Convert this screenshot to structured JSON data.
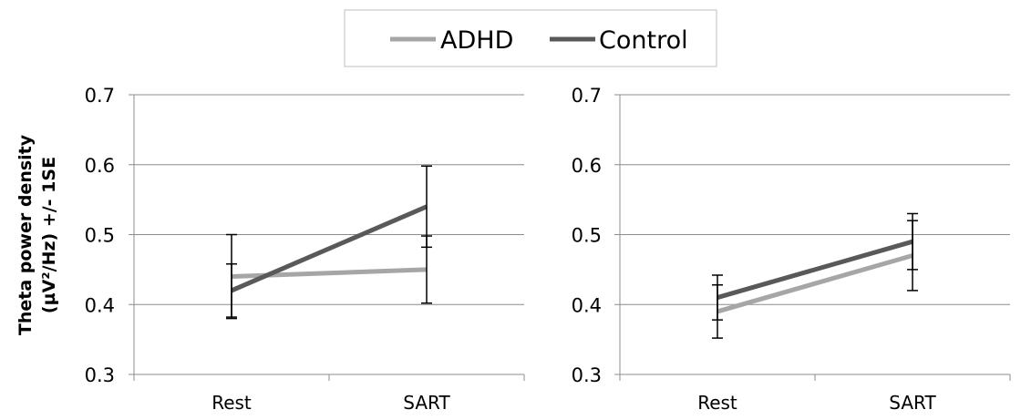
{
  "legend": {
    "items": [
      {
        "label": "ADHD",
        "color": "#a6a6a6"
      },
      {
        "label": "Control",
        "color": "#595959"
      }
    ]
  },
  "y_axis_label": {
    "line1": "Theta power density",
    "line2": "(µV²/Hz) +/- 1SE"
  },
  "chart_data": [
    {
      "type": "line",
      "categories": [
        "Rest",
        "SART"
      ],
      "ylim": [
        0.3,
        0.7
      ],
      "yticks": [
        "0.7",
        "0.6",
        "0.5",
        "0.4",
        "0.3"
      ],
      "ytick_values": [
        0.7,
        0.6,
        0.5,
        0.4,
        0.3
      ],
      "grid": true,
      "legend_position": "top-center",
      "series": [
        {
          "name": "ADHD",
          "color": "#a6a6a6",
          "values": [
            0.44,
            0.45
          ],
          "error": [
            0.06,
            0.048
          ]
        },
        {
          "name": "Control",
          "color": "#595959",
          "values": [
            0.42,
            0.54
          ],
          "error": [
            0.038,
            0.058
          ]
        }
      ]
    },
    {
      "type": "line",
      "categories": [
        "Rest",
        "SART"
      ],
      "ylim": [
        0.3,
        0.7
      ],
      "yticks": [
        "0.7",
        "0.6",
        "0.5",
        "0.4",
        "0.3"
      ],
      "ytick_values": [
        0.7,
        0.6,
        0.5,
        0.4,
        0.3
      ],
      "grid": true,
      "series": [
        {
          "name": "ADHD",
          "color": "#a6a6a6",
          "values": [
            0.39,
            0.47
          ],
          "error": [
            0.038,
            0.05
          ]
        },
        {
          "name": "Control",
          "color": "#595959",
          "values": [
            0.41,
            0.49
          ],
          "error": [
            0.032,
            0.04
          ]
        }
      ]
    }
  ]
}
